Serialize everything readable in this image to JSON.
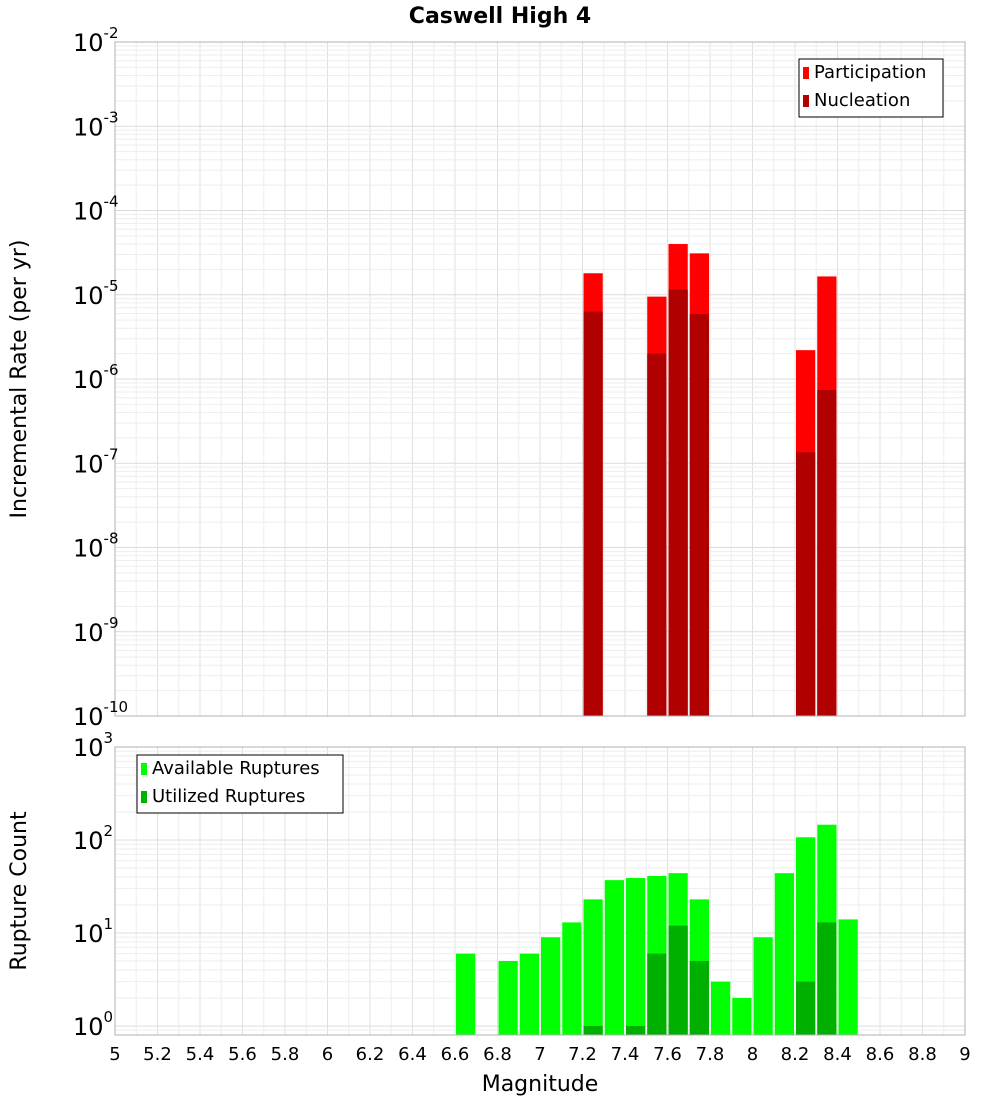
{
  "title": "Caswell High 4",
  "chart_data": [
    {
      "type": "bar",
      "name": "rate-panel",
      "ylabel": "Incremental Rate (per yr)",
      "yscale": "log",
      "ylim": [
        1e-10,
        0.01
      ],
      "yticks": [
        {
          "base": "10",
          "exp": "-10",
          "value": 1e-10
        },
        {
          "base": "10",
          "exp": "-9",
          "value": 1e-09
        },
        {
          "base": "10",
          "exp": "-8",
          "value": 1e-08
        },
        {
          "base": "10",
          "exp": "-7",
          "value": 1e-07
        },
        {
          "base": "10",
          "exp": "-6",
          "value": 1e-06
        },
        {
          "base": "10",
          "exp": "-5",
          "value": 1e-05
        },
        {
          "base": "10",
          "exp": "-4",
          "value": 0.0001
        },
        {
          "base": "10",
          "exp": "-3",
          "value": 0.001
        },
        {
          "base": "10",
          "exp": "-2",
          "value": 0.01
        }
      ],
      "xlim": [
        5,
        9
      ],
      "bin_width": 0.1,
      "legend_position": "top-right",
      "series": [
        {
          "name": "Participation",
          "color": "#ff0000",
          "x": [
            7.25,
            7.55,
            7.65,
            7.75,
            8.25,
            8.35
          ],
          "values": [
            1.8e-05,
            9.5e-06,
            4e-05,
            3.1e-05,
            2.2e-06,
            1.65e-05
          ]
        },
        {
          "name": "Nucleation",
          "color": "#b00000",
          "x": [
            7.25,
            7.55,
            7.65,
            7.75,
            8.25,
            8.35
          ],
          "values": [
            6.3e-06,
            2e-06,
            1.15e-05,
            5.9e-06,
            1.35e-07,
            7.4e-07
          ]
        }
      ],
      "grid": true
    },
    {
      "type": "bar",
      "name": "count-panel",
      "xlabel": "Magnitude",
      "ylabel": "Rupture Count",
      "yscale": "log",
      "ylim": [
        0.8,
        1000
      ],
      "yticks": [
        {
          "base": "10",
          "exp": "0",
          "value": 1
        },
        {
          "base": "10",
          "exp": "1",
          "value": 10
        },
        {
          "base": "10",
          "exp": "2",
          "value": 100
        },
        {
          "base": "10",
          "exp": "3",
          "value": 1000
        }
      ],
      "xlim": [
        5,
        9
      ],
      "xticks": [
        "5",
        "5.2",
        "5.4",
        "5.6",
        "5.8",
        "6",
        "6.2",
        "6.4",
        "6.6",
        "6.8",
        "7",
        "7.2",
        "7.4",
        "7.6",
        "7.8",
        "8",
        "8.2",
        "8.4",
        "8.6",
        "8.8",
        "9"
      ],
      "bin_width": 0.1,
      "legend_position": "top-left",
      "series": [
        {
          "name": "Available Ruptures",
          "color": "#00ff00",
          "x": [
            6.65,
            6.85,
            6.95,
            7.05,
            7.15,
            7.25,
            7.35,
            7.45,
            7.55,
            7.65,
            7.75,
            7.85,
            7.95,
            8.05,
            8.15,
            8.25,
            8.35,
            8.45
          ],
          "values": [
            6,
            5,
            6,
            9,
            13,
            23,
            37,
            39,
            41,
            44,
            23,
            3,
            2,
            9,
            44,
            107,
            146,
            14
          ]
        },
        {
          "name": "Utilized Ruptures",
          "color": "#00b000",
          "x": [
            7.25,
            7.45,
            7.55,
            7.65,
            7.75,
            8.25,
            8.35
          ],
          "values": [
            1,
            1,
            6,
            12,
            5,
            3,
            13
          ]
        }
      ],
      "grid": true
    }
  ]
}
